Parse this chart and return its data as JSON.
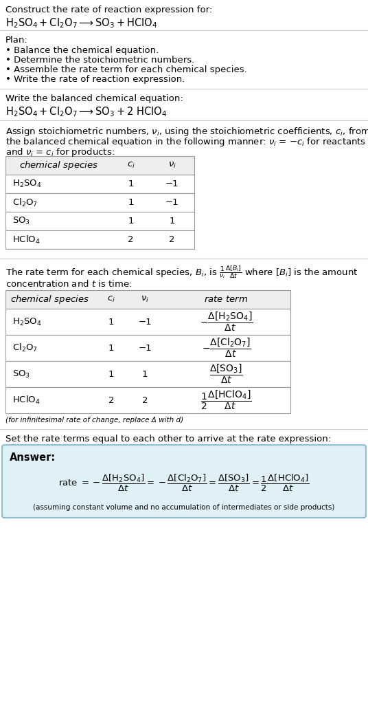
{
  "title_text": "Construct the rate of reaction expression for:",
  "section1_header": "Plan:",
  "section1_bullets": [
    "• Balance the chemical equation.",
    "• Determine the stoichiometric numbers.",
    "• Assemble the rate term for each chemical species.",
    "• Write the rate of reaction expression."
  ],
  "section2_header": "Write the balanced chemical equation:",
  "section3_intro_parts": [
    "Assign stoichiometric numbers, ",
    "v_i",
    ", using the stoichiometric coefficients, ",
    "c_i",
    ", from the balanced chemical equation in the following manner: ",
    "v_i",
    " = −",
    "c_i",
    " for reactants and ",
    "v_i",
    " = ",
    "c_i",
    " for products:"
  ],
  "table1_headers": [
    "chemical species",
    "c_i",
    "v_i"
  ],
  "table1_rows": [
    [
      "H₂SO₄",
      "1",
      "−1"
    ],
    [
      "Cl₂O₇",
      "1",
      "−1"
    ],
    [
      "SO₃",
      "1",
      "1"
    ],
    [
      "HClO₄",
      "2",
      "2"
    ]
  ],
  "table2_headers": [
    "chemical species",
    "c_i",
    "v_i",
    "rate term"
  ],
  "table2_rows": [
    [
      "H₂SO₄",
      "1",
      "−1"
    ],
    [
      "Cl₂O₇",
      "1",
      "−1"
    ],
    [
      "SO₃",
      "1",
      "1"
    ],
    [
      "HClO₄",
      "2",
      "2"
    ]
  ],
  "infinitesimal_note": "(for infinitesimal rate of change, replace Δ with d)",
  "section5_header": "Set the rate terms equal to each other to arrive at the rate expression:",
  "answer_label": "Answer:",
  "answer_bg_color": "#dff0f7",
  "answer_border_color": "#90bfd4",
  "bg_color": "#ffffff",
  "text_color": "#000000",
  "table_border_color": "#999999",
  "sep_line_color": "#cccccc",
  "font_size": 9.5,
  "font_size_small": 7.5,
  "fig_width": 5.36,
  "fig_height": 10.34,
  "dpi": 100
}
